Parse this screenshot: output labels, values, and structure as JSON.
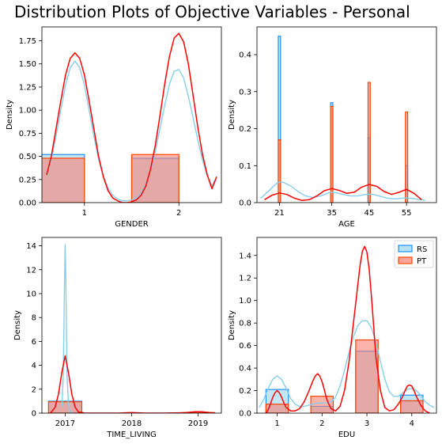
{
  "figure": {
    "suptitle": "Distribution Plots of Objective Variables - Personal"
  },
  "colors": {
    "rs_fill": "#87ceeb",
    "rs_edge": "#1e90ff",
    "rs_kde": "#87ceeb",
    "pt_fill": "#fa8072",
    "pt_edge": "#ff4500",
    "pt_kde": "#ff0000"
  },
  "chart_data": [
    {
      "type": "bar",
      "panel": "gender",
      "xlabel": "GENDER",
      "ylabel": "Density",
      "xlim": [
        0.55,
        2.45
      ],
      "ylim": [
        0,
        1.9
      ],
      "xticks": [
        1,
        2
      ],
      "xtick_labels": [
        "1",
        "2"
      ],
      "yticks": [
        0,
        0.25,
        0.5,
        0.75,
        1.0,
        1.25,
        1.5,
        1.75
      ],
      "ytick_labels": [
        "0.00",
        "0.25",
        "0.50",
        "0.75",
        "1.00",
        "1.25",
        "1.50",
        "1.75"
      ],
      "series": [
        {
          "name": "RS",
          "bars": [
            {
              "x0": 0.5,
              "x1": 1.0,
              "height": 0.52
            },
            {
              "x0": 1.5,
              "x1": 2.0,
              "height": 0.48
            }
          ],
          "kde": {
            "x": [
              0.6,
              0.65,
              0.7,
              0.75,
              0.8,
              0.85,
              0.9,
              0.95,
              1.0,
              1.05,
              1.1,
              1.15,
              1.2,
              1.25,
              1.3,
              1.35,
              1.4,
              1.45,
              1.5,
              1.55,
              1.6,
              1.65,
              1.7,
              1.75,
              1.8,
              1.85,
              1.9,
              1.95,
              2.0,
              2.05,
              2.1,
              2.15,
              2.2,
              2.25,
              2.3,
              2.35,
              2.4
            ],
            "y": [
              0.3,
              0.48,
              0.72,
              1.0,
              1.27,
              1.46,
              1.53,
              1.46,
              1.27,
              1.0,
              0.72,
              0.47,
              0.28,
              0.16,
              0.08,
              0.04,
              0.02,
              0.02,
              0.03,
              0.05,
              0.1,
              0.2,
              0.35,
              0.55,
              0.8,
              1.05,
              1.28,
              1.42,
              1.44,
              1.35,
              1.15,
              0.92,
              0.68,
              0.46,
              0.29,
              0.18,
              0.28
            ]
          }
        },
        {
          "name": "PT",
          "bars": [
            {
              "x0": 0.5,
              "x1": 1.0,
              "height": 0.48
            },
            {
              "x0": 1.5,
              "x1": 2.0,
              "height": 0.52
            }
          ],
          "kde": {
            "x": [
              0.6,
              0.65,
              0.7,
              0.75,
              0.8,
              0.85,
              0.9,
              0.95,
              1.0,
              1.05,
              1.1,
              1.15,
              1.2,
              1.25,
              1.3,
              1.35,
              1.4,
              1.45,
              1.5,
              1.55,
              1.6,
              1.65,
              1.7,
              1.75,
              1.8,
              1.85,
              1.9,
              1.95,
              2.0,
              2.05,
              2.1,
              2.15,
              2.2,
              2.25,
              2.3,
              2.35,
              2.4
            ],
            "y": [
              0.3,
              0.5,
              0.8,
              1.1,
              1.38,
              1.56,
              1.62,
              1.56,
              1.38,
              1.1,
              0.8,
              0.5,
              0.28,
              0.13,
              0.05,
              0.02,
              0.0,
              0.0,
              0.01,
              0.03,
              0.08,
              0.18,
              0.36,
              0.62,
              0.94,
              1.28,
              1.58,
              1.78,
              1.83,
              1.74,
              1.5,
              1.16,
              0.82,
              0.52,
              0.3,
              0.15,
              0.28
            ]
          }
        }
      ]
    },
    {
      "type": "bar",
      "panel": "age",
      "xlabel": "AGE",
      "ylabel": "Density",
      "xlim": [
        15,
        63
      ],
      "ylim": [
        0,
        0.475
      ],
      "xticks": [
        21,
        35,
        45,
        55
      ],
      "xtick_labels": [
        "21",
        "35",
        "45",
        "55"
      ],
      "yticks": [
        0,
        0.1,
        0.2,
        0.3,
        0.4
      ],
      "ytick_labels": [
        "0.0",
        "0.1",
        "0.2",
        "0.3",
        "0.4"
      ],
      "series": [
        {
          "name": "RS",
          "bars": [
            {
              "x0": 20.7,
              "x1": 21.3,
              "height": 0.45
            },
            {
              "x0": 34.7,
              "x1": 35.3,
              "height": 0.27
            },
            {
              "x0": 44.7,
              "x1": 45.3,
              "height": 0.175
            },
            {
              "x0": 54.7,
              "x1": 55.3,
              "height": 0.1
            }
          ],
          "kde": {
            "x": [
              16,
              18,
              20,
              21,
              22,
              24,
              26,
              28,
              30,
              32,
              34,
              35,
              36,
              38,
              40,
              42,
              44,
              45,
              46,
              48,
              50,
              52,
              54,
              55,
              56,
              58,
              60
            ],
            "y": [
              0.012,
              0.03,
              0.05,
              0.056,
              0.055,
              0.045,
              0.03,
              0.018,
              0.014,
              0.018,
              0.026,
              0.028,
              0.027,
              0.022,
              0.018,
              0.018,
              0.022,
              0.023,
              0.022,
              0.017,
              0.012,
              0.01,
              0.012,
              0.013,
              0.012,
              0.009,
              0.006
            ]
          }
        },
        {
          "name": "PT",
          "bars": [
            {
              "x0": 20.7,
              "x1": 21.3,
              "height": 0.17
            },
            {
              "x0": 34.7,
              "x1": 35.3,
              "height": 0.26
            },
            {
              "x0": 44.7,
              "x1": 45.3,
              "height": 0.325
            },
            {
              "x0": 54.7,
              "x1": 55.3,
              "height": 0.245
            }
          ],
          "kde": {
            "x": [
              17,
              19,
              21,
              23,
              25,
              27,
              29,
              31,
              33,
              35,
              37,
              39,
              41,
              43,
              45,
              47,
              49,
              51,
              53,
              55,
              57,
              59
            ],
            "y": [
              0.008,
              0.02,
              0.026,
              0.022,
              0.012,
              0.006,
              0.008,
              0.018,
              0.032,
              0.038,
              0.033,
              0.025,
              0.028,
              0.042,
              0.049,
              0.044,
              0.03,
              0.022,
              0.028,
              0.036,
              0.025,
              0.008
            ]
          }
        }
      ]
    },
    {
      "type": "bar",
      "panel": "time_living",
      "xlabel": "TIME_LIVING",
      "ylabel": "Density",
      "xlim": [
        2016.65,
        2019.35
      ],
      "ylim": [
        0,
        14.7
      ],
      "xticks": [
        2017,
        2018,
        2019
      ],
      "xtick_labels": [
        "2017",
        "2018",
        "2019"
      ],
      "yticks": [
        0,
        2,
        4,
        6,
        8,
        10,
        12,
        14
      ],
      "ytick_labels": [
        "0",
        "2",
        "4",
        "6",
        "8",
        "10",
        "12",
        "14"
      ],
      "series": [
        {
          "name": "RS",
          "bars": [
            {
              "x0": 2016.75,
              "x1": 2017.25,
              "height": 1.0
            }
          ],
          "kde": {
            "x": [
              2016.95,
              2016.97,
              2016.98,
              2016.99,
              2017.0,
              2017.01,
              2017.02,
              2017.03,
              2017.05,
              2017.07,
              2017.1
            ],
            "y": [
              0.5,
              3.0,
              6.5,
              11.0,
              14.1,
              11.0,
              6.5,
              3.0,
              0.8,
              0.1,
              0.0
            ]
          }
        },
        {
          "name": "PT",
          "bars": [
            {
              "x0": 2016.75,
              "x1": 2017.25,
              "height": 0.95
            },
            {
              "x0": 2018.75,
              "x1": 2019.25,
              "height": 0.05
            }
          ],
          "kde": {
            "x": [
              2016.78,
              2016.85,
              2016.9,
              2016.95,
              2017.0,
              2017.05,
              2017.1,
              2017.15,
              2017.2,
              2017.3,
              2017.5,
              2017.8,
              2018.0,
              2018.2,
              2018.5,
              2018.8,
              2018.95,
              2019.05,
              2019.2,
              2019.25
            ],
            "y": [
              0.0,
              0.5,
              1.6,
              3.4,
              4.8,
              3.4,
              1.6,
              0.5,
              0.1,
              0.0,
              0.0,
              0.0,
              0.05,
              0.0,
              0.0,
              0.03,
              0.12,
              0.12,
              0.03,
              0.0
            ]
          }
        }
      ]
    },
    {
      "type": "bar",
      "panel": "edu",
      "xlabel": "EDU",
      "ylabel": "Density",
      "xlim": [
        0.55,
        4.55
      ],
      "ylim": [
        0,
        1.56
      ],
      "xticks": [
        1,
        2,
        3,
        4
      ],
      "xtick_labels": [
        "1",
        "2",
        "3",
        "4"
      ],
      "yticks": [
        0,
        0.2,
        0.4,
        0.6,
        0.8,
        1.0,
        1.2,
        1.4
      ],
      "ytick_labels": [
        "0.0",
        "0.2",
        "0.4",
        "0.6",
        "0.8",
        "1.0",
        "1.2",
        "1.4"
      ],
      "legend": "upper-right",
      "series": [
        {
          "name": "RS",
          "bars": [
            {
              "x0": 0.75,
              "x1": 1.25,
              "height": 0.21
            },
            {
              "x0": 1.75,
              "x1": 2.25,
              "height": 0.06
            },
            {
              "x0": 2.75,
              "x1": 3.25,
              "height": 0.55
            },
            {
              "x0": 3.75,
              "x1": 4.25,
              "height": 0.16
            }
          ],
          "kde": {
            "x": [
              0.6,
              0.7,
              0.8,
              0.9,
              1.0,
              1.1,
              1.2,
              1.3,
              1.4,
              1.5,
              1.6,
              1.7,
              1.8,
              1.9,
              2.0,
              2.1,
              2.2,
              2.3,
              2.4,
              2.5,
              2.6,
              2.7,
              2.8,
              2.9,
              3.0,
              3.1,
              3.2,
              3.3,
              3.4,
              3.5,
              3.6,
              3.7,
              3.8,
              3.9,
              4.0,
              4.1,
              4.2,
              4.3,
              4.4,
              4.5
            ],
            "y": [
              0.05,
              0.12,
              0.22,
              0.3,
              0.33,
              0.3,
              0.22,
              0.13,
              0.08,
              0.06,
              0.06,
              0.07,
              0.08,
              0.09,
              0.09,
              0.09,
              0.1,
              0.14,
              0.24,
              0.38,
              0.54,
              0.68,
              0.78,
              0.82,
              0.82,
              0.76,
              0.63,
              0.46,
              0.3,
              0.19,
              0.15,
              0.15,
              0.18,
              0.21,
              0.22,
              0.2,
              0.16,
              0.1,
              0.07,
              0.05
            ]
          }
        },
        {
          "name": "PT",
          "bars": [
            {
              "x0": 0.75,
              "x1": 1.25,
              "height": 0.08
            },
            {
              "x0": 1.75,
              "x1": 2.25,
              "height": 0.15
            },
            {
              "x0": 2.75,
              "x1": 3.25,
              "height": 0.65
            },
            {
              "x0": 3.75,
              "x1": 4.25,
              "height": 0.11
            }
          ],
          "kde": {
            "x": [
              0.75,
              0.8,
              0.85,
              0.9,
              0.95,
              1.0,
              1.05,
              1.1,
              1.15,
              1.2,
              1.3,
              1.4,
              1.5,
              1.6,
              1.7,
              1.8,
              1.85,
              1.9,
              1.95,
              2.0,
              2.05,
              2.1,
              2.15,
              2.2,
              2.3,
              2.4,
              2.5,
              2.6,
              2.7,
              2.8,
              2.85,
              2.9,
              2.95,
              3.0,
              3.05,
              3.1,
              3.15,
              3.2,
              3.3,
              3.4,
              3.5,
              3.6,
              3.7,
              3.8,
              3.85,
              3.9,
              3.95,
              4.0,
              4.05,
              4.1,
              4.2,
              4.3,
              4.4
            ],
            "y": [
              0.0,
              0.03,
              0.08,
              0.14,
              0.18,
              0.2,
              0.18,
              0.14,
              0.09,
              0.05,
              0.02,
              0.02,
              0.04,
              0.1,
              0.19,
              0.29,
              0.33,
              0.35,
              0.33,
              0.28,
              0.21,
              0.13,
              0.08,
              0.04,
              0.02,
              0.06,
              0.2,
              0.45,
              0.8,
              1.15,
              1.32,
              1.44,
              1.48,
              1.43,
              1.28,
              1.04,
              0.78,
              0.5,
              0.2,
              0.05,
              0.02,
              0.03,
              0.08,
              0.15,
              0.2,
              0.24,
              0.25,
              0.24,
              0.2,
              0.15,
              0.07,
              0.02,
              0.0
            ]
          }
        }
      ]
    }
  ]
}
